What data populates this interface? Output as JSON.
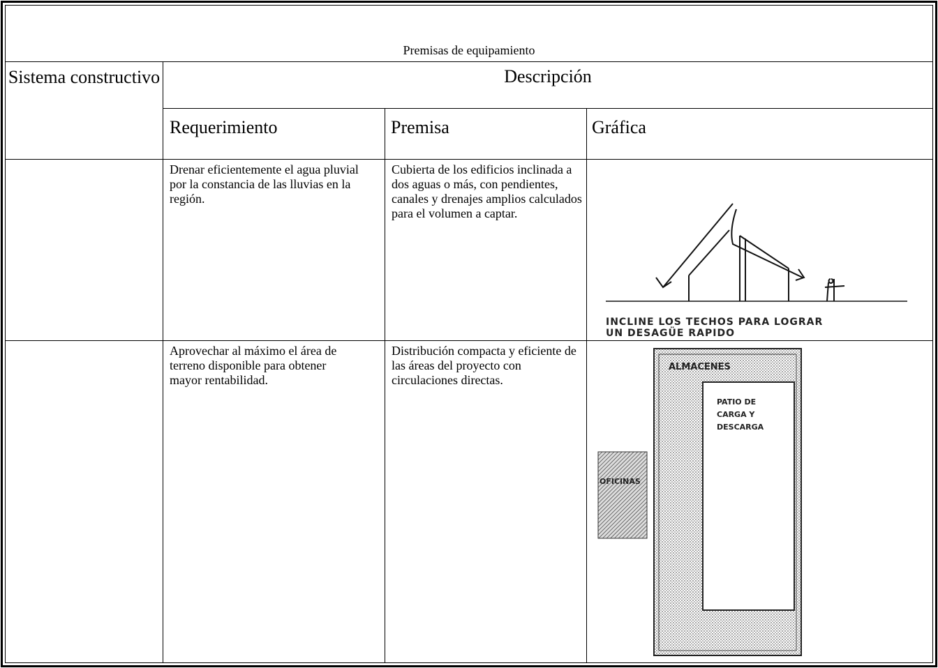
{
  "table": {
    "title": "Premisas de equipamiento",
    "headers": {
      "sistema": "Sistema constructivo",
      "descripcion": "Descripción",
      "columns": [
        "Requerimiento",
        "Premisa",
        "Gráfica"
      ]
    },
    "rows": [
      {
        "requerimiento": "Drenar eficientemente el agua pluvial por la constancia de las lluvias en la región.",
        "premisa": "Cubierta de los edificios inclinada a dos aguas o más, con pendientes, canales y drenajes amplios calculados para el volumen a captar.",
        "grafica": {
          "caption": [
            "INCLINE LOS TECHOS PARA LOGRAR",
            "UN DESAGÜE RAPIDO"
          ]
        }
      },
      {
        "requerimiento": "Aprovechar al máximo el área de terreno disponible para obtener mayor rentabilidad.",
        "premisa": "Distribución compacta y eficiente de las áreas del proyecto con circulaciones directas.",
        "grafica": {
          "labels": [
            "ALMACENES",
            "PATIO DE",
            "CARGA Y",
            "DESCARGA",
            "OFICINAS"
          ]
        }
      }
    ]
  }
}
